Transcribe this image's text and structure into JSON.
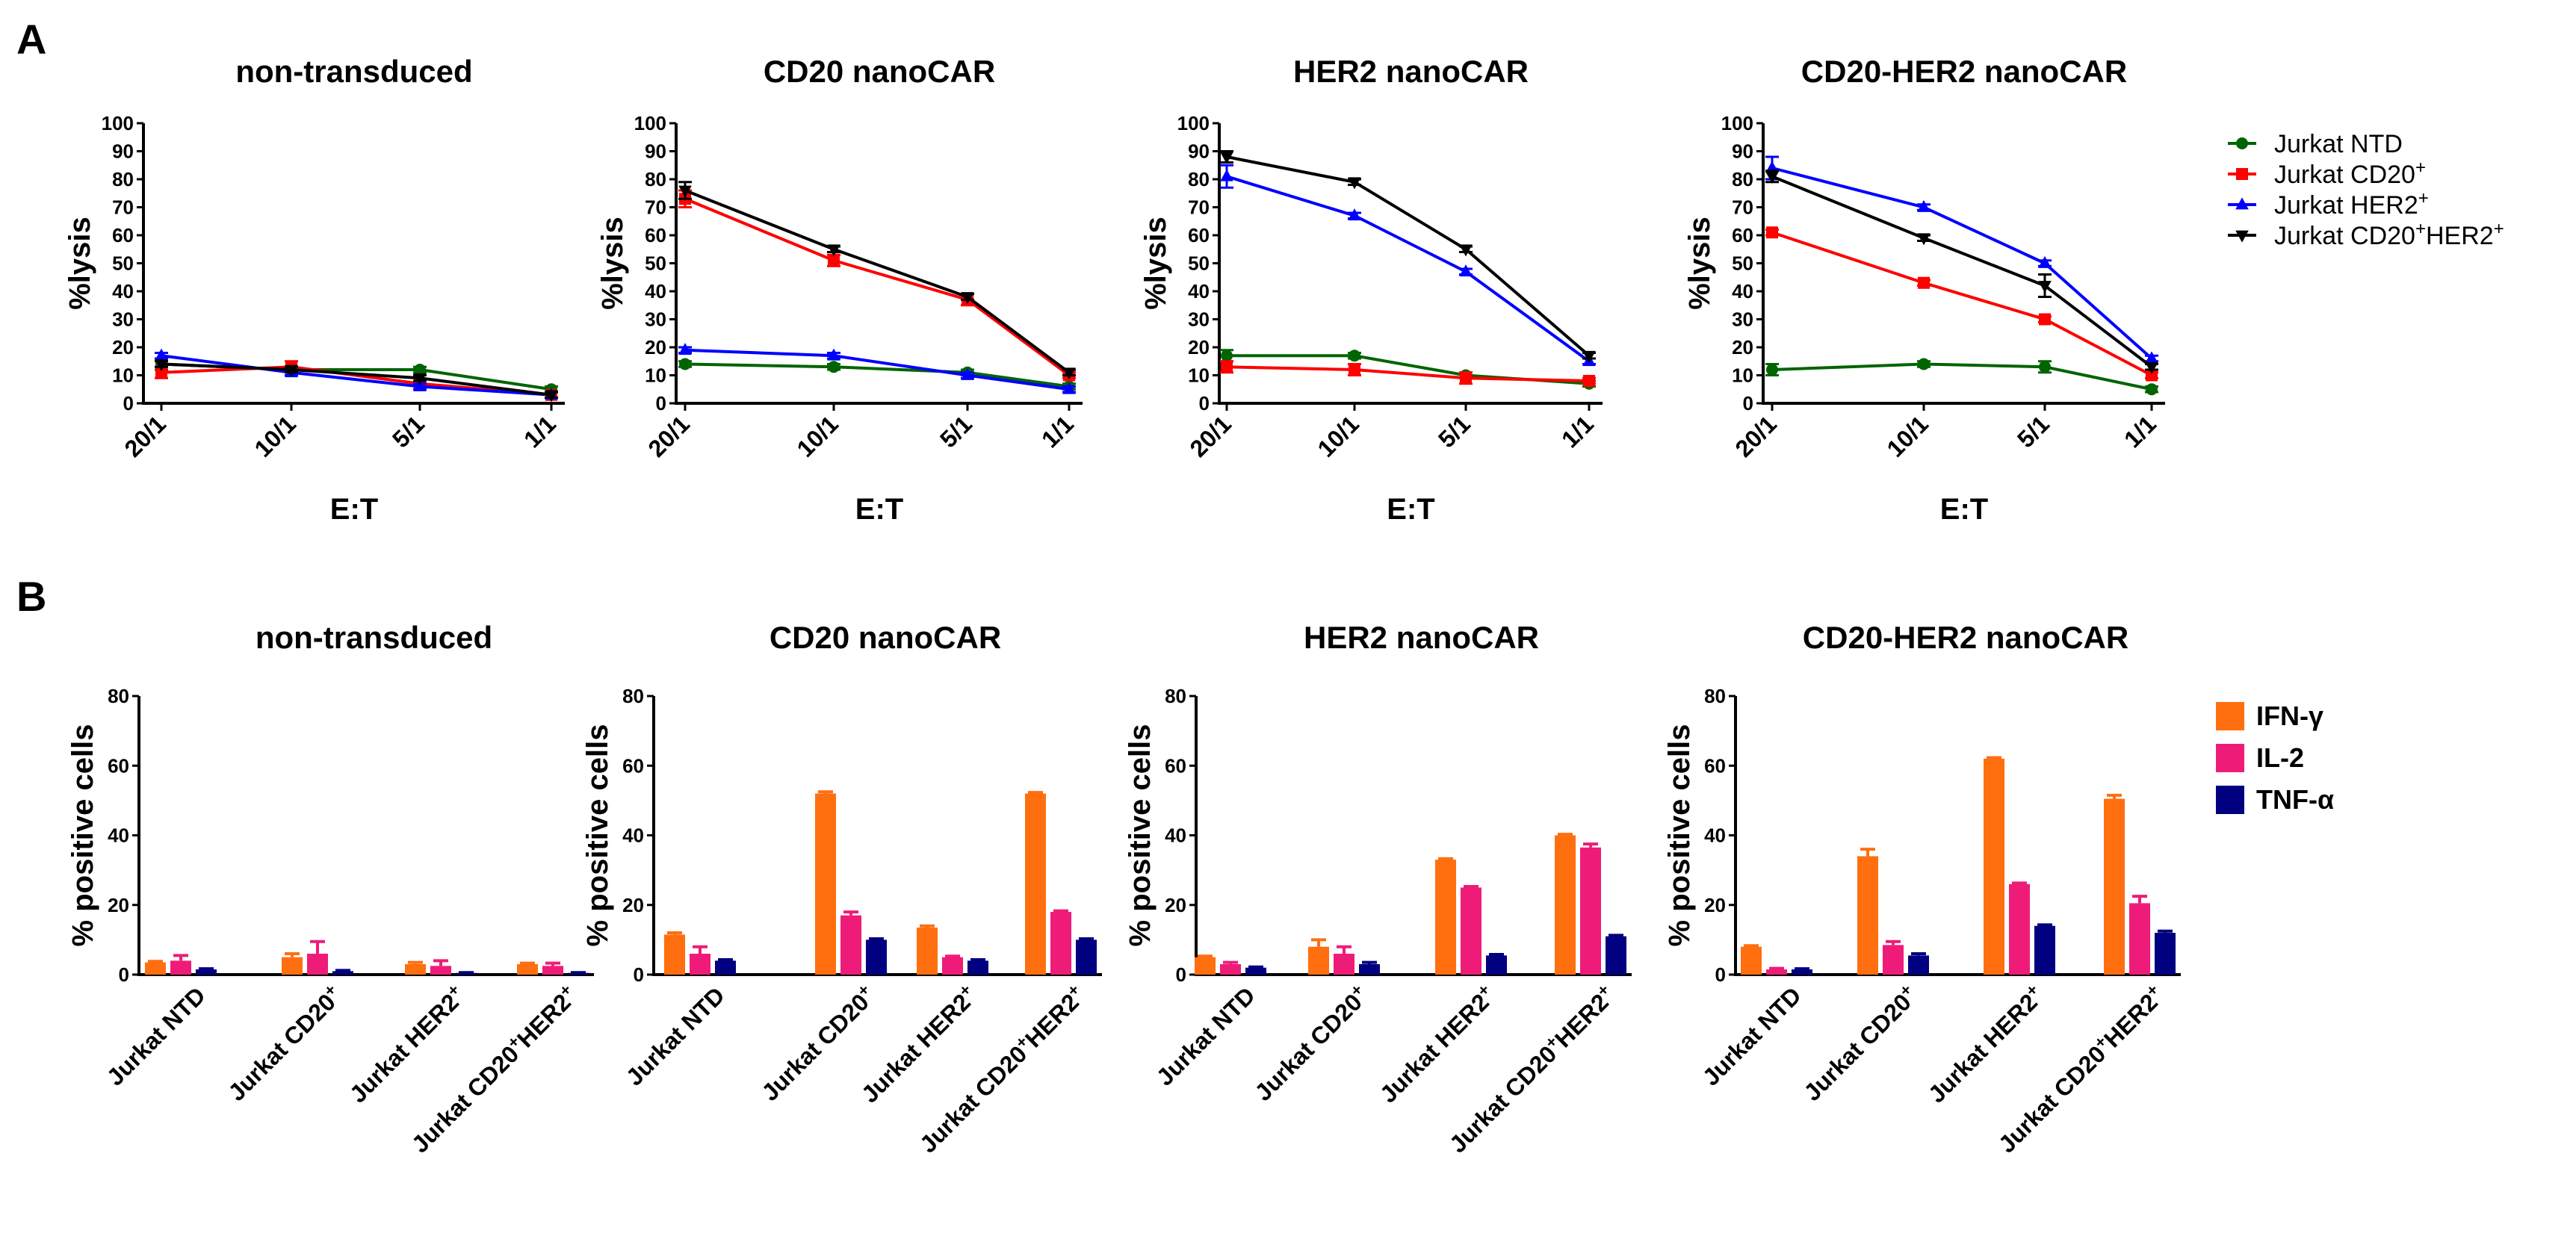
{
  "labels": {
    "panel_a": "A",
    "panel_b": "B"
  },
  "chart_data": [
    {
      "type": "line",
      "title": "non-transduced",
      "xlabel": "E:T",
      "ylabel": "%lysis",
      "x": [
        "20/1",
        "10/1",
        "5/1",
        "1/1"
      ],
      "ylim": [
        0,
        100
      ],
      "yticks": [
        0,
        10,
        20,
        30,
        40,
        50,
        60,
        70,
        80,
        90,
        100
      ],
      "series": [
        {
          "name": "Jurkat NTD",
          "color": "#006400",
          "marker": "circle",
          "values": [
            14,
            12,
            12,
            5
          ],
          "errors": [
            2,
            1,
            1,
            1
          ]
        },
        {
          "name": "Jurkat CD20+",
          "color": "#ff0000",
          "marker": "square",
          "values": [
            11,
            13,
            7,
            3
          ],
          "errors": [
            2,
            2,
            1,
            1
          ]
        },
        {
          "name": "Jurkat HER2+",
          "color": "#0000ff",
          "marker": "triangle-up",
          "values": [
            17,
            11,
            6,
            3
          ],
          "errors": [
            1,
            1,
            1,
            1
          ]
        },
        {
          "name": "Jurkat CD20+HER2+",
          "color": "#000000",
          "marker": "triangle-down",
          "values": [
            14,
            12,
            9,
            3
          ],
          "errors": [
            1,
            1,
            1,
            1
          ]
        }
      ]
    },
    {
      "type": "line",
      "title": "CD20 nanoCAR",
      "xlabel": "E:T",
      "ylabel": "%lysis",
      "x": [
        "20/1",
        "10/1",
        "5/1",
        "1/1"
      ],
      "ylim": [
        0,
        100
      ],
      "yticks": [
        0,
        10,
        20,
        30,
        40,
        50,
        60,
        70,
        80,
        90,
        100
      ],
      "series": [
        {
          "name": "Jurkat NTD",
          "color": "#006400",
          "marker": "circle",
          "values": [
            14,
            13,
            11,
            6
          ],
          "errors": [
            1,
            1,
            1,
            1
          ]
        },
        {
          "name": "Jurkat CD20+",
          "color": "#ff0000",
          "marker": "square",
          "values": [
            73,
            51,
            37,
            10
          ],
          "errors": [
            3,
            2,
            2,
            1
          ]
        },
        {
          "name": "Jurkat HER2+",
          "color": "#0000ff",
          "marker": "triangle-up",
          "values": [
            19,
            17,
            10,
            5
          ],
          "errors": [
            1,
            1,
            1,
            1
          ]
        },
        {
          "name": "Jurkat CD20+HER2+",
          "color": "#000000",
          "marker": "triangle-down",
          "values": [
            76,
            55,
            38,
            11
          ],
          "errors": [
            3,
            1,
            1,
            1
          ]
        }
      ]
    },
    {
      "type": "line",
      "title": "HER2 nanoCAR",
      "xlabel": "E:T",
      "ylabel": "%lysis",
      "x": [
        "20/1",
        "10/1",
        "5/1",
        "1/1"
      ],
      "ylim": [
        0,
        100
      ],
      "yticks": [
        0,
        10,
        20,
        30,
        40,
        50,
        60,
        70,
        80,
        90,
        100
      ],
      "series": [
        {
          "name": "Jurkat NTD",
          "color": "#006400",
          "marker": "circle",
          "values": [
            17,
            17,
            10,
            7
          ],
          "errors": [
            2,
            1,
            1,
            1
          ]
        },
        {
          "name": "Jurkat CD20+",
          "color": "#ff0000",
          "marker": "square",
          "values": [
            13,
            12,
            9,
            8
          ],
          "errors": [
            2,
            2,
            2,
            1
          ]
        },
        {
          "name": "Jurkat HER2+",
          "color": "#0000ff",
          "marker": "triangle-up",
          "values": [
            81,
            67,
            47,
            15
          ],
          "errors": [
            4,
            1,
            1,
            1
          ]
        },
        {
          "name": "Jurkat CD20+HER2+",
          "color": "#000000",
          "marker": "triangle-down",
          "values": [
            88,
            79,
            55,
            17
          ],
          "errors": [
            2,
            1,
            1,
            1
          ]
        }
      ]
    },
    {
      "type": "line",
      "title": "CD20-HER2 nanoCAR",
      "xlabel": "E:T",
      "ylabel": "%lysis",
      "x": [
        "20/1",
        "10/1",
        "5/1",
        "1/1"
      ],
      "ylim": [
        0,
        100
      ],
      "yticks": [
        0,
        10,
        20,
        30,
        40,
        50,
        60,
        70,
        80,
        90,
        100
      ],
      "series": [
        {
          "name": "Jurkat NTD",
          "color": "#006400",
          "marker": "circle",
          "values": [
            12,
            14,
            13,
            5
          ],
          "errors": [
            2,
            1,
            2,
            1
          ]
        },
        {
          "name": "Jurkat CD20+",
          "color": "#ff0000",
          "marker": "square",
          "values": [
            61,
            43,
            30,
            10
          ],
          "errors": [
            1,
            1,
            1,
            1
          ]
        },
        {
          "name": "Jurkat HER2+",
          "color": "#0000ff",
          "marker": "triangle-up",
          "values": [
            84,
            70,
            50,
            16
          ],
          "errors": [
            4,
            1,
            1,
            1
          ]
        },
        {
          "name": "Jurkat CD20+HER2+",
          "color": "#000000",
          "marker": "triangle-down",
          "values": [
            81,
            59,
            42,
            13
          ],
          "errors": [
            2,
            1,
            4,
            1
          ]
        }
      ]
    },
    {
      "type": "bar",
      "title": "non-transduced",
      "ylabel": "% positive cells",
      "categories": [
        "Jurkat NTD",
        "Jurkat CD20+",
        "Jurkat HER2+",
        "Jurkat CD20+HER2+"
      ],
      "ylim": [
        0,
        80
      ],
      "yticks": [
        0,
        20,
        40,
        60,
        80
      ],
      "series": [
        {
          "name": "IFN-γ",
          "color": "#ff6f0f",
          "values": [
            3.5,
            5,
            3,
            3
          ],
          "errors": [
            0.3,
            1,
            0.5,
            0.3
          ]
        },
        {
          "name": "IL-2",
          "color": "#ee1c78",
          "values": [
            4,
            6,
            2.5,
            2.5
          ],
          "errors": [
            1.5,
            3.5,
            1.5,
            0.8
          ]
        },
        {
          "name": "TNF-α",
          "color": "#000080",
          "values": [
            1.5,
            1,
            0.5,
            0.5
          ],
          "errors": [
            0.2,
            0.2,
            0.1,
            0.1
          ]
        }
      ]
    },
    {
      "type": "bar",
      "title": "CD20 nanoCAR",
      "ylabel": "% positive cells",
      "categories": [
        "Jurkat NTD",
        "Jurkat CD20+",
        "Jurkat HER2+",
        "Jurkat CD20+HER2+"
      ],
      "ylim": [
        0,
        80
      ],
      "yticks": [
        0,
        20,
        40,
        60,
        80
      ],
      "series": [
        {
          "name": "IFN-γ",
          "color": "#ff6f0f",
          "values": [
            11.5,
            52,
            13.5,
            52
          ],
          "errors": [
            0.5,
            0.5,
            0.5,
            0.3
          ]
        },
        {
          "name": "IL-2",
          "color": "#ee1c78",
          "values": [
            6,
            17,
            5,
            18
          ],
          "errors": [
            2,
            1,
            0.3,
            0.3
          ]
        },
        {
          "name": "TNF-α",
          "color": "#000080",
          "values": [
            4,
            10,
            4,
            10
          ],
          "errors": [
            0.3,
            0.3,
            0.3,
            0.3
          ]
        }
      ]
    },
    {
      "type": "bar",
      "title": "HER2 nanoCAR",
      "ylabel": "% positive cells",
      "categories": [
        "Jurkat NTD",
        "Jurkat CD20+",
        "Jurkat HER2+",
        "Jurkat CD20+HER2+"
      ],
      "ylim": [
        0,
        80
      ],
      "yticks": [
        0,
        20,
        40,
        60,
        80
      ],
      "series": [
        {
          "name": "IFN-γ",
          "color": "#ff6f0f",
          "values": [
            5,
            8,
            33,
            40
          ],
          "errors": [
            0.3,
            2,
            0.3,
            0.3
          ]
        },
        {
          "name": "IL-2",
          "color": "#ee1c78",
          "values": [
            3,
            6,
            25,
            36.5
          ],
          "errors": [
            0.5,
            2,
            0.3,
            1
          ]
        },
        {
          "name": "TNF-α",
          "color": "#000080",
          "values": [
            2,
            3,
            5.5,
            11
          ],
          "errors": [
            0.2,
            0.5,
            0.3,
            0.3
          ]
        }
      ]
    },
    {
      "type": "bar",
      "title": "CD20-HER2 nanoCAR",
      "ylabel": "% positive cells",
      "categories": [
        "Jurkat NTD",
        "Jurkat CD20+",
        "Jurkat HER2+",
        "Jurkat CD20+HER2+"
      ],
      "ylim": [
        0,
        80
      ],
      "yticks": [
        0,
        20,
        40,
        60,
        80
      ],
      "series": [
        {
          "name": "IFN-γ",
          "color": "#ff6f0f",
          "values": [
            8,
            34,
            62,
            50.5
          ],
          "errors": [
            0.3,
            2,
            0.3,
            1
          ]
        },
        {
          "name": "IL-2",
          "color": "#ee1c78",
          "values": [
            1.5,
            8.5,
            26,
            20.5
          ],
          "errors": [
            0.3,
            1,
            0.3,
            2
          ]
        },
        {
          "name": "TNF-α",
          "color": "#000080",
          "values": [
            1.5,
            5.5,
            14,
            12
          ],
          "errors": [
            0.2,
            0.5,
            0.3,
            0.5
          ]
        }
      ]
    }
  ],
  "legends": {
    "lysis": [
      {
        "pre": "Jurkat NTD",
        "color": "#006400",
        "marker": "circle"
      },
      {
        "pre": "Jurkat CD20",
        "sup1": "+",
        "color": "#ff0000",
        "marker": "square"
      },
      {
        "pre": "Jurkat HER2",
        "sup1": "+",
        "color": "#0000ff",
        "marker": "triangle-up"
      },
      {
        "pre": "Jurkat CD20",
        "sup1": "+",
        "mid": "HER2",
        "sup2": "+",
        "color": "#000000",
        "marker": "triangle-down"
      }
    ],
    "cytokine": [
      {
        "label": "IFN-γ",
        "color": "#ff6f0f"
      },
      {
        "label": "IL-2",
        "color": "#ee1c78"
      },
      {
        "label": "TNF-α",
        "color": "#000080"
      }
    ]
  }
}
